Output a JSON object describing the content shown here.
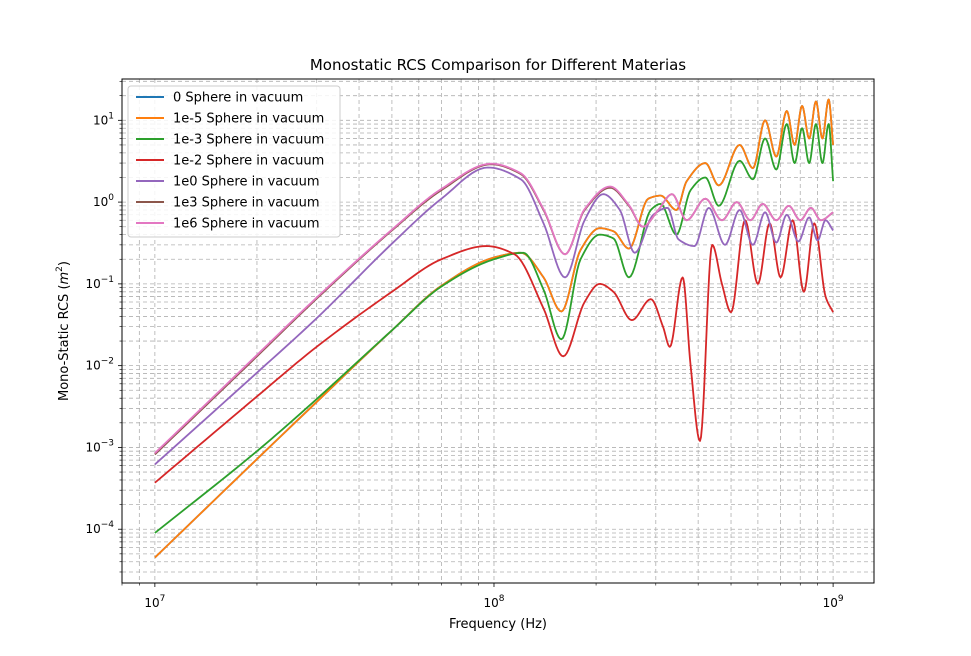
{
  "chart_data": {
    "type": "line",
    "title": "Monostatic RCS Comparison for Different Materias",
    "xlabel": "Frequency (Hz)",
    "ylabel_main": "Mono-Static RCS (",
    "ylabel_unit": "m",
    "ylabel_exp": "2",
    "ylabel_close": ")",
    "xscale": "log",
    "yscale": "log",
    "xlim": [
      8000000,
      1320000000
    ],
    "ylim": [
      2.2e-05,
      32
    ],
    "grid": true,
    "grid_which": "both",
    "legend_loc": "upper left",
    "x_ticks": [
      {
        "value": 10000000,
        "base": "10",
        "exp": "7"
      },
      {
        "value": 100000000,
        "base": "10",
        "exp": "8"
      },
      {
        "value": 1000000000,
        "base": "10",
        "exp": "9"
      }
    ],
    "y_ticks": [
      {
        "value": 0.0001,
        "base": "10",
        "exp": "−4"
      },
      {
        "value": 0.001,
        "base": "10",
        "exp": "−3"
      },
      {
        "value": 0.01,
        "base": "10",
        "exp": "−2"
      },
      {
        "value": 0.1,
        "base": "10",
        "exp": "−1"
      },
      {
        "value": 1,
        "base": "10",
        "exp": "0"
      },
      {
        "value": 10,
        "base": "10",
        "exp": "1"
      }
    ],
    "series": [
      {
        "name": "0 Sphere in vacuum",
        "color": "#1f77b4",
        "points": [
          [
            10000000.0,
            4.5e-05
          ],
          [
            20000000.0,
            0.00072
          ],
          [
            30000000.0,
            0.0036
          ],
          [
            50000000.0,
            0.027
          ],
          [
            70000000.0,
            0.095
          ],
          [
            100000000.0,
            0.21
          ],
          [
            120000000.0,
            0.24
          ],
          [
            140000000.0,
            0.12
          ],
          [
            158000000.0,
            0.046
          ],
          [
            180000000.0,
            0.26
          ],
          [
            205000000.0,
            0.48
          ],
          [
            225000000.0,
            0.44
          ],
          [
            250000000.0,
            0.27
          ],
          [
            285000000.0,
            1.1
          ],
          [
            310000000.0,
            1.2
          ],
          [
            345000000.0,
            0.8
          ],
          [
            370000000.0,
            1.8
          ],
          [
            420000000.0,
            3.0
          ],
          [
            460000000.0,
            1.6
          ],
          [
            530000000.0,
            5.0
          ],
          [
            580000000.0,
            2.6
          ],
          [
            630000000.0,
            10
          ],
          [
            680000000.0,
            3.6
          ],
          [
            730000000.0,
            13
          ],
          [
            770000000.0,
            5
          ],
          [
            810000000.0,
            15
          ],
          [
            850000000.0,
            6
          ],
          [
            890000000.0,
            17
          ],
          [
            930000000.0,
            6
          ],
          [
            970000000.0,
            18
          ],
          [
            1000000000.0,
            5
          ]
        ]
      },
      {
        "name": "1e-5 Sphere in vacuum",
        "color": "#ff7f0e",
        "points": [
          [
            10000000.0,
            4.5e-05
          ],
          [
            20000000.0,
            0.00072
          ],
          [
            30000000.0,
            0.0036
          ],
          [
            50000000.0,
            0.027
          ],
          [
            70000000.0,
            0.095
          ],
          [
            100000000.0,
            0.21
          ],
          [
            120000000.0,
            0.24
          ],
          [
            140000000.0,
            0.12
          ],
          [
            158000000.0,
            0.046
          ],
          [
            180000000.0,
            0.26
          ],
          [
            205000000.0,
            0.48
          ],
          [
            225000000.0,
            0.44
          ],
          [
            250000000.0,
            0.27
          ],
          [
            285000000.0,
            1.1
          ],
          [
            310000000.0,
            1.2
          ],
          [
            345000000.0,
            0.8
          ],
          [
            370000000.0,
            1.8
          ],
          [
            420000000.0,
            3.0
          ],
          [
            460000000.0,
            1.6
          ],
          [
            530000000.0,
            5.0
          ],
          [
            580000000.0,
            2.6
          ],
          [
            630000000.0,
            10
          ],
          [
            680000000.0,
            3.6
          ],
          [
            730000000.0,
            13
          ],
          [
            770000000.0,
            5
          ],
          [
            810000000.0,
            15
          ],
          [
            850000000.0,
            6
          ],
          [
            890000000.0,
            17
          ],
          [
            930000000.0,
            6
          ],
          [
            970000000.0,
            18
          ],
          [
            1000000000.0,
            5
          ]
        ]
      },
      {
        "name": "1e-3 Sphere in vacuum",
        "color": "#2ca02c",
        "points": [
          [
            10000000.0,
            9e-05
          ],
          [
            20000000.0,
            0.0009
          ],
          [
            30000000.0,
            0.0039
          ],
          [
            50000000.0,
            0.027
          ],
          [
            70000000.0,
            0.093
          ],
          [
            100000000.0,
            0.2
          ],
          [
            122000000.0,
            0.24
          ],
          [
            140000000.0,
            0.085
          ],
          [
            158000000.0,
            0.021
          ],
          [
            180000000.0,
            0.2
          ],
          [
            205000000.0,
            0.4
          ],
          [
            225000000.0,
            0.36
          ],
          [
            250000000.0,
            0.12
          ],
          [
            290000000.0,
            0.8
          ],
          [
            310000000.0,
            0.95
          ],
          [
            345000000.0,
            0.4
          ],
          [
            380000000.0,
            1.4
          ],
          [
            420000000.0,
            2.0
          ],
          [
            460000000.0,
            0.9
          ],
          [
            530000000.0,
            3.2
          ],
          [
            580000000.0,
            1.9
          ],
          [
            630000000.0,
            6
          ],
          [
            680000000.0,
            2.5
          ],
          [
            730000000.0,
            9
          ],
          [
            770000000.0,
            3
          ],
          [
            810000000.0,
            8
          ],
          [
            850000000.0,
            3
          ],
          [
            890000000.0,
            9
          ],
          [
            930000000.0,
            3
          ],
          [
            970000000.0,
            9
          ],
          [
            1000000000.0,
            1.8
          ]
        ]
      },
      {
        "name": "1e-2 Sphere in vacuum",
        "color": "#d62728",
        "points": [
          [
            10000000.0,
            0.00037
          ],
          [
            20000000.0,
            0.0042
          ],
          [
            30000000.0,
            0.017
          ],
          [
            50000000.0,
            0.08
          ],
          [
            70000000.0,
            0.2
          ],
          [
            95000000.0,
            0.29
          ],
          [
            115000000.0,
            0.23
          ],
          [
            140000000.0,
            0.05
          ],
          [
            160000000.0,
            0.013
          ],
          [
            185000000.0,
            0.06
          ],
          [
            205000000.0,
            0.1
          ],
          [
            225000000.0,
            0.08
          ],
          [
            255000000.0,
            0.036
          ],
          [
            290000000.0,
            0.065
          ],
          [
            315000000.0,
            0.03
          ],
          [
            330000000.0,
            0.017
          ],
          [
            360000000.0,
            0.12
          ],
          [
            380000000.0,
            0.01
          ],
          [
            405000000.0,
            0.0012
          ],
          [
            440000000.0,
            0.3
          ],
          [
            470000000.0,
            0.1
          ],
          [
            500000000.0,
            0.045
          ],
          [
            550000000.0,
            0.6
          ],
          [
            600000000.0,
            0.1
          ],
          [
            650000000.0,
            0.55
          ],
          [
            700000000.0,
            0.12
          ],
          [
            760000000.0,
            0.6
          ],
          [
            820000000.0,
            0.08
          ],
          [
            880000000.0,
            0.55
          ],
          [
            950000000.0,
            0.07
          ],
          [
            1000000000.0,
            0.045
          ]
        ]
      },
      {
        "name": "1e0 Sphere in vacuum",
        "color": "#9467bd",
        "points": [
          [
            10000000.0,
            0.00062
          ],
          [
            20000000.0,
            0.0082
          ],
          [
            30000000.0,
            0.038
          ],
          [
            50000000.0,
            0.31
          ],
          [
            70000000.0,
            1.1
          ],
          [
            96000000.0,
            2.65
          ],
          [
            120000000.0,
            1.9
          ],
          [
            140000000.0,
            0.55
          ],
          [
            162000000.0,
            0.12
          ],
          [
            185000000.0,
            0.6
          ],
          [
            210000000.0,
            1.25
          ],
          [
            235000000.0,
            0.8
          ],
          [
            260000000.0,
            0.24
          ],
          [
            295000000.0,
            0.7
          ],
          [
            325000000.0,
            0.85
          ],
          [
            350000000.0,
            0.35
          ],
          [
            390000000.0,
            0.29
          ],
          [
            430000000.0,
            0.85
          ],
          [
            480000000.0,
            0.3
          ],
          [
            530000000.0,
            0.8
          ],
          [
            580000000.0,
            0.3
          ],
          [
            630000000.0,
            0.75
          ],
          [
            680000000.0,
            0.32
          ],
          [
            730000000.0,
            0.7
          ],
          [
            790000000.0,
            0.33
          ],
          [
            850000000.0,
            0.65
          ],
          [
            900000000.0,
            0.34
          ],
          [
            950000000.0,
            0.6
          ],
          [
            1000000000.0,
            0.45
          ]
        ]
      },
      {
        "name": "1e3 Sphere in vacuum",
        "color": "#8c564b",
        "points": [
          [
            10000000.0,
            0.00082
          ],
          [
            20000000.0,
            0.013
          ],
          [
            30000000.0,
            0.066
          ],
          [
            50000000.0,
            0.45
          ],
          [
            70000000.0,
            1.4
          ],
          [
            98000000.0,
            2.9
          ],
          [
            120000000.0,
            2.2
          ],
          [
            140000000.0,
            0.8
          ],
          [
            162000000.0,
            0.23
          ],
          [
            185000000.0,
            0.8
          ],
          [
            220000000.0,
            1.5
          ],
          [
            250000000.0,
            0.9
          ],
          [
            275000000.0,
            0.5
          ],
          [
            305000000.0,
            0.8
          ],
          [
            335000000.0,
            1.25
          ],
          [
            370000000.0,
            0.6
          ],
          [
            420000000.0,
            1.1
          ],
          [
            470000000.0,
            0.6
          ],
          [
            520000000.0,
            1.0
          ],
          [
            570000000.0,
            0.6
          ],
          [
            620000000.0,
            0.95
          ],
          [
            680000000.0,
            0.6
          ],
          [
            740000000.0,
            0.9
          ],
          [
            800000000.0,
            0.6
          ],
          [
            860000000.0,
            0.85
          ],
          [
            920000000.0,
            0.6
          ],
          [
            1000000000.0,
            0.75
          ]
        ]
      },
      {
        "name": "1e6 Sphere in vacuum",
        "color": "#e377c2",
        "points": [
          [
            10000000.0,
            0.00085
          ],
          [
            20000000.0,
            0.0135
          ],
          [
            30000000.0,
            0.068
          ],
          [
            50000000.0,
            0.46
          ],
          [
            70000000.0,
            1.45
          ],
          [
            98000000.0,
            2.95
          ],
          [
            120000000.0,
            2.25
          ],
          [
            140000000.0,
            0.82
          ],
          [
            162000000.0,
            0.23
          ],
          [
            185000000.0,
            0.82
          ],
          [
            220000000.0,
            1.55
          ],
          [
            250000000.0,
            0.92
          ],
          [
            275000000.0,
            0.5
          ],
          [
            305000000.0,
            0.8
          ],
          [
            335000000.0,
            1.25
          ],
          [
            370000000.0,
            0.6
          ],
          [
            420000000.0,
            1.1
          ],
          [
            470000000.0,
            0.6
          ],
          [
            520000000.0,
            1.0
          ],
          [
            570000000.0,
            0.6
          ],
          [
            620000000.0,
            0.95
          ],
          [
            680000000.0,
            0.6
          ],
          [
            740000000.0,
            0.9
          ],
          [
            800000000.0,
            0.6
          ],
          [
            860000000.0,
            0.85
          ],
          [
            920000000.0,
            0.6
          ],
          [
            1000000000.0,
            0.75
          ]
        ]
      }
    ]
  }
}
